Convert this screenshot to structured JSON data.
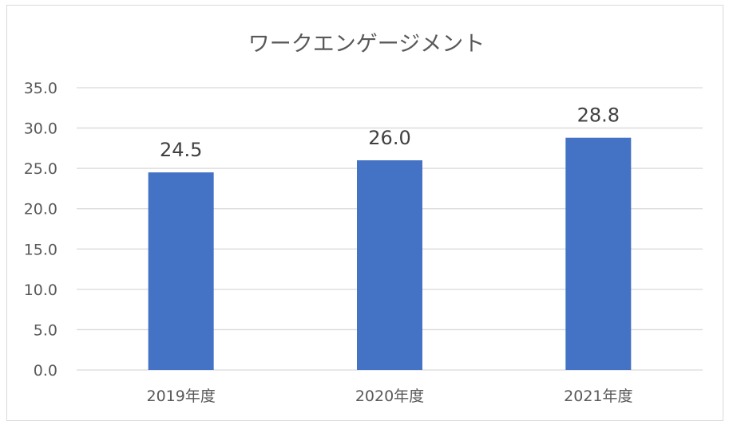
{
  "chart_data": {
    "type": "bar",
    "title": "ワークエンゲージメント",
    "categories": [
      "2019年度",
      "2020年度",
      "2021年度"
    ],
    "values": [
      24.5,
      26.0,
      28.8
    ],
    "value_labels": [
      "24.5",
      "26.0",
      "28.8"
    ],
    "ylim": [
      0,
      35
    ],
    "yticks": [
      "0.0",
      "5.0",
      "10.0",
      "15.0",
      "20.0",
      "25.0",
      "30.0",
      "35.0"
    ],
    "xlabel": "",
    "ylabel": "",
    "grid": true,
    "legend": "none",
    "bar_color": "#4472C4",
    "grid_color": "#d9d9d9"
  }
}
